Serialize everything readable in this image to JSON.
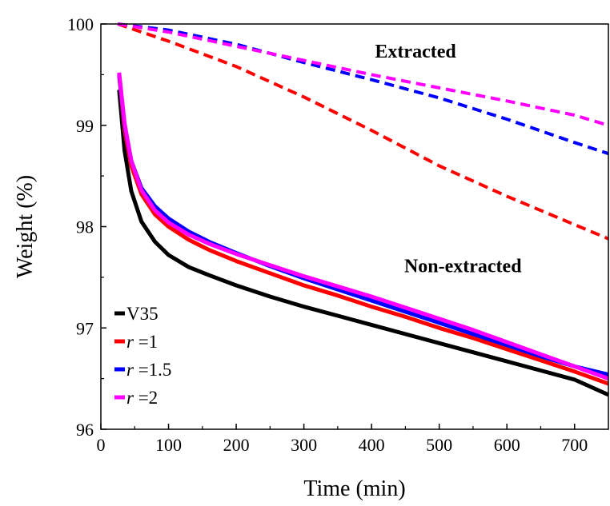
{
  "chart_data": {
    "type": "line",
    "xlabel": "Time (min)",
    "ylabel": "Weight (%)",
    "xlim": [
      0,
      750
    ],
    "ylim": [
      96,
      100
    ],
    "xticks": [
      "0",
      "100",
      "200",
      "300",
      "400",
      "500",
      "600",
      "700"
    ],
    "yticks": [
      "96",
      "97",
      "98",
      "99",
      "100"
    ],
    "grid": false,
    "legend_placement": "bottom-left",
    "annotations": [
      {
        "text": "Extracted",
        "x": 465,
        "y": 99.67
      },
      {
        "text": "Non-extracted",
        "x": 535,
        "y": 97.55
      }
    ],
    "legend": [
      {
        "prefix": "",
        "italic": "",
        "text": "V35",
        "color": "#000000"
      },
      {
        "prefix": "",
        "italic": "r",
        "text": " =1",
        "color": "#ff0000"
      },
      {
        "prefix": "",
        "italic": "r",
        "text": " =1.5",
        "color": "#0000ff"
      },
      {
        "prefix": "",
        "italic": "r",
        "text": " =2",
        "color": "#ff00ff"
      }
    ],
    "series": [
      {
        "group": "Non-extracted",
        "legend_label": "V35",
        "color": "#000000",
        "style": "solid",
        "x": [
          27,
          35,
          45,
          60,
          80,
          100,
          130,
          160,
          200,
          250,
          300,
          350,
          400,
          450,
          500,
          550,
          600,
          650,
          700,
          750
        ],
        "y": [
          99.35,
          98.75,
          98.35,
          98.05,
          97.85,
          97.72,
          97.6,
          97.52,
          97.42,
          97.31,
          97.21,
          97.12,
          97.03,
          96.94,
          96.85,
          96.76,
          96.67,
          96.58,
          96.49,
          96.34
        ]
      },
      {
        "group": "Non-extracted",
        "legend_label": "r =1",
        "color": "#ff0000",
        "style": "solid",
        "x": [
          27,
          35,
          45,
          60,
          80,
          100,
          130,
          160,
          200,
          250,
          300,
          350,
          400,
          450,
          500,
          550,
          600,
          650,
          700,
          750
        ],
        "y": [
          99.5,
          98.95,
          98.6,
          98.32,
          98.12,
          98.0,
          97.87,
          97.77,
          97.66,
          97.54,
          97.42,
          97.32,
          97.21,
          97.11,
          97.0,
          96.9,
          96.79,
          96.68,
          96.57,
          96.45
        ]
      },
      {
        "group": "Non-extracted",
        "legend_label": "r =1.5",
        "color": "#0000ff",
        "style": "solid",
        "x": [
          27,
          35,
          45,
          60,
          80,
          100,
          130,
          160,
          200,
          250,
          300,
          350,
          400,
          450,
          500,
          550,
          600,
          650,
          700,
          750
        ],
        "y": [
          99.5,
          99.0,
          98.65,
          98.38,
          98.2,
          98.08,
          97.95,
          97.85,
          97.74,
          97.61,
          97.49,
          97.38,
          97.27,
          97.16,
          97.05,
          96.94,
          96.83,
          96.72,
          96.62,
          96.54
        ]
      },
      {
        "group": "Non-extracted",
        "legend_label": "r =2",
        "color": "#ff00ff",
        "style": "solid",
        "x": [
          27,
          35,
          45,
          60,
          80,
          100,
          130,
          160,
          200,
          250,
          300,
          350,
          400,
          450,
          500,
          550,
          600,
          650,
          700,
          750
        ],
        "y": [
          99.52,
          99.02,
          98.65,
          98.36,
          98.16,
          98.04,
          97.92,
          97.83,
          97.73,
          97.62,
          97.51,
          97.41,
          97.31,
          97.2,
          97.09,
          96.98,
          96.86,
          96.74,
          96.62,
          96.5
        ]
      },
      {
        "group": "Extracted",
        "legend_label": "r =1",
        "color": "#ff0000",
        "style": "dashed",
        "x": [
          25,
          100,
          200,
          300,
          400,
          500,
          600,
          700,
          750
        ],
        "y": [
          100.0,
          99.83,
          99.58,
          99.28,
          98.95,
          98.6,
          98.3,
          98.02,
          97.88
        ]
      },
      {
        "group": "Extracted",
        "legend_label": "r =1.5",
        "color": "#0000ff",
        "style": "dashed",
        "x": [
          25,
          100,
          200,
          300,
          400,
          500,
          600,
          700,
          750
        ],
        "y": [
          100.0,
          99.94,
          99.8,
          99.62,
          99.45,
          99.27,
          99.06,
          98.83,
          98.72
        ]
      },
      {
        "group": "Extracted",
        "legend_label": "r =2",
        "color": "#ff00ff",
        "style": "dashed",
        "x": [
          25,
          100,
          200,
          300,
          400,
          500,
          600,
          700,
          750
        ],
        "y": [
          100.0,
          99.92,
          99.78,
          99.64,
          99.5,
          99.37,
          99.24,
          99.1,
          99.0
        ]
      }
    ]
  }
}
